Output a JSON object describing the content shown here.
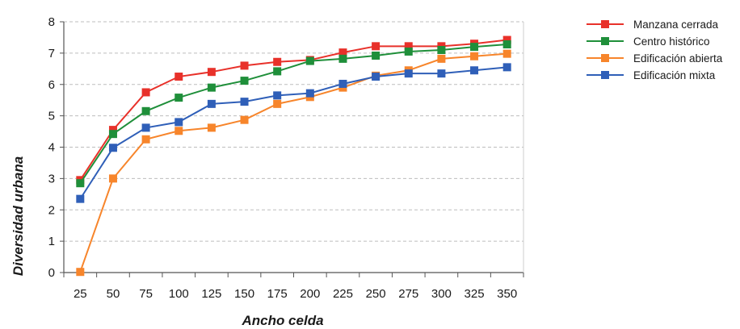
{
  "chart_data": {
    "type": "line",
    "xlabel": "Ancho celda",
    "ylabel": "Diversidad urbana",
    "x": [
      25,
      50,
      75,
      100,
      125,
      150,
      175,
      200,
      225,
      250,
      275,
      300,
      325,
      350
    ],
    "ylim": [
      0,
      8
    ],
    "yticks": [
      0,
      1,
      2,
      3,
      4,
      5,
      6,
      7,
      8
    ],
    "grid": "horizontal dashed",
    "legend_position": "right",
    "series": [
      {
        "name": "Manzana cerrada",
        "color": "#e8312a",
        "values": [
          2.95,
          4.55,
          5.75,
          6.25,
          6.4,
          6.6,
          6.72,
          6.78,
          7.02,
          7.22,
          7.22,
          7.22,
          7.3,
          7.42
        ]
      },
      {
        "name": "Centro histórico",
        "color": "#1f8f3a",
        "values": [
          2.85,
          4.42,
          5.15,
          5.58,
          5.9,
          6.12,
          6.42,
          6.75,
          6.82,
          6.92,
          7.05,
          7.1,
          7.2,
          7.28
        ]
      },
      {
        "name": "Edificación abierta",
        "color": "#f7852b",
        "values": [
          0.02,
          3.0,
          4.25,
          4.52,
          4.62,
          4.87,
          5.38,
          5.6,
          5.9,
          6.28,
          6.45,
          6.82,
          6.9,
          6.98
        ]
      },
      {
        "name": "Edificación mixta",
        "color": "#2f5fb8",
        "values": [
          2.35,
          3.98,
          4.62,
          4.8,
          5.38,
          5.45,
          5.65,
          5.72,
          6.02,
          6.25,
          6.35,
          6.35,
          6.45,
          6.55
        ]
      }
    ]
  }
}
